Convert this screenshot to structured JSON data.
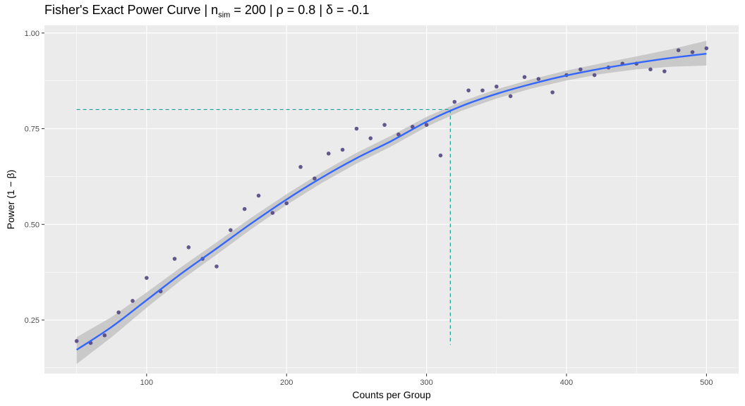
{
  "title": {
    "prefix": "Fisher's Exact Power Curve | n",
    "subscript": "sim",
    "suffix": " = 200 | ρ = 0.8 | δ = -0.1"
  },
  "chart_data": {
    "type": "scatter",
    "xlabel": "Counts per Group",
    "ylabel": "Power (1 − β)",
    "xlim": [
      27,
      523
    ],
    "ylim": [
      0.11,
      1.02
    ],
    "x_ticks": [
      100,
      200,
      300,
      400,
      500
    ],
    "y_ticks": [
      0.25,
      0.5,
      0.75,
      1.0
    ],
    "y_tick_labels": [
      "0.25",
      "0.50",
      "0.75",
      "1.00"
    ],
    "grid": true,
    "points": [
      {
        "x": 50,
        "y": 0.195
      },
      {
        "x": 60,
        "y": 0.19
      },
      {
        "x": 70,
        "y": 0.21
      },
      {
        "x": 80,
        "y": 0.27
      },
      {
        "x": 90,
        "y": 0.3
      },
      {
        "x": 100,
        "y": 0.36
      },
      {
        "x": 110,
        "y": 0.325
      },
      {
        "x": 120,
        "y": 0.41
      },
      {
        "x": 130,
        "y": 0.44
      },
      {
        "x": 140,
        "y": 0.41
      },
      {
        "x": 150,
        "y": 0.39
      },
      {
        "x": 160,
        "y": 0.485
      },
      {
        "x": 170,
        "y": 0.54
      },
      {
        "x": 180,
        "y": 0.575
      },
      {
        "x": 190,
        "y": 0.53
      },
      {
        "x": 200,
        "y": 0.555
      },
      {
        "x": 210,
        "y": 0.65
      },
      {
        "x": 220,
        "y": 0.62
      },
      {
        "x": 230,
        "y": 0.685
      },
      {
        "x": 240,
        "y": 0.695
      },
      {
        "x": 250,
        "y": 0.75
      },
      {
        "x": 260,
        "y": 0.725
      },
      {
        "x": 270,
        "y": 0.76
      },
      {
        "x": 280,
        "y": 0.735
      },
      {
        "x": 290,
        "y": 0.755
      },
      {
        "x": 300,
        "y": 0.76
      },
      {
        "x": 310,
        "y": 0.68
      },
      {
        "x": 320,
        "y": 0.82
      },
      {
        "x": 330,
        "y": 0.85
      },
      {
        "x": 340,
        "y": 0.85
      },
      {
        "x": 350,
        "y": 0.86
      },
      {
        "x": 360,
        "y": 0.835
      },
      {
        "x": 370,
        "y": 0.885
      },
      {
        "x": 380,
        "y": 0.88
      },
      {
        "x": 390,
        "y": 0.845
      },
      {
        "x": 400,
        "y": 0.89
      },
      {
        "x": 410,
        "y": 0.905
      },
      {
        "x": 420,
        "y": 0.89
      },
      {
        "x": 430,
        "y": 0.91
      },
      {
        "x": 440,
        "y": 0.92
      },
      {
        "x": 450,
        "y": 0.92
      },
      {
        "x": 460,
        "y": 0.905
      },
      {
        "x": 470,
        "y": 0.9
      },
      {
        "x": 480,
        "y": 0.955
      },
      {
        "x": 490,
        "y": 0.95
      },
      {
        "x": 500,
        "y": 0.96
      }
    ],
    "fit": [
      {
        "x": 50,
        "y": 0.172,
        "lo": 0.135,
        "hi": 0.205
      },
      {
        "x": 75,
        "y": 0.232,
        "lo": 0.205,
        "hi": 0.258
      },
      {
        "x": 100,
        "y": 0.302,
        "lo": 0.282,
        "hi": 0.322
      },
      {
        "x": 125,
        "y": 0.372,
        "lo": 0.355,
        "hi": 0.389
      },
      {
        "x": 150,
        "y": 0.437,
        "lo": 0.421,
        "hi": 0.453
      },
      {
        "x": 175,
        "y": 0.503,
        "lo": 0.488,
        "hi": 0.518
      },
      {
        "x": 200,
        "y": 0.565,
        "lo": 0.551,
        "hi": 0.579
      },
      {
        "x": 225,
        "y": 0.622,
        "lo": 0.608,
        "hi": 0.636
      },
      {
        "x": 250,
        "y": 0.673,
        "lo": 0.659,
        "hi": 0.687
      },
      {
        "x": 275,
        "y": 0.718,
        "lo": 0.704,
        "hi": 0.732
      },
      {
        "x": 300,
        "y": 0.768,
        "lo": 0.755,
        "hi": 0.781
      },
      {
        "x": 325,
        "y": 0.809,
        "lo": 0.797,
        "hi": 0.821
      },
      {
        "x": 350,
        "y": 0.841,
        "lo": 0.829,
        "hi": 0.853
      },
      {
        "x": 375,
        "y": 0.867,
        "lo": 0.855,
        "hi": 0.879
      },
      {
        "x": 400,
        "y": 0.889,
        "lo": 0.876,
        "hi": 0.902
      },
      {
        "x": 425,
        "y": 0.907,
        "lo": 0.893,
        "hi": 0.921
      },
      {
        "x": 450,
        "y": 0.922,
        "lo": 0.905,
        "hi": 0.939
      },
      {
        "x": 475,
        "y": 0.935,
        "lo": 0.912,
        "hi": 0.958
      },
      {
        "x": 500,
        "y": 0.946,
        "lo": 0.915,
        "hi": 0.98
      }
    ],
    "reference": {
      "power": 0.8,
      "n": 317
    },
    "colors": {
      "panel": "#ebebeb",
      "grid": "#ffffff",
      "points": "#4b3d7a",
      "fit_line": "#3366ff",
      "ribbon": "#bdbdbd",
      "reference": "#1a9e96"
    }
  }
}
